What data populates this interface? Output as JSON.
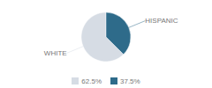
{
  "chart_data": {
    "type": "pie",
    "categories": [
      "WHITE",
      "HISPANIC"
    ],
    "values": [
      62.5,
      37.5
    ],
    "value_labels": [
      "62.5%",
      "37.5%"
    ],
    "colors": [
      "#d6dce4",
      "#2e6b8a"
    ],
    "legend": "bottom"
  }
}
